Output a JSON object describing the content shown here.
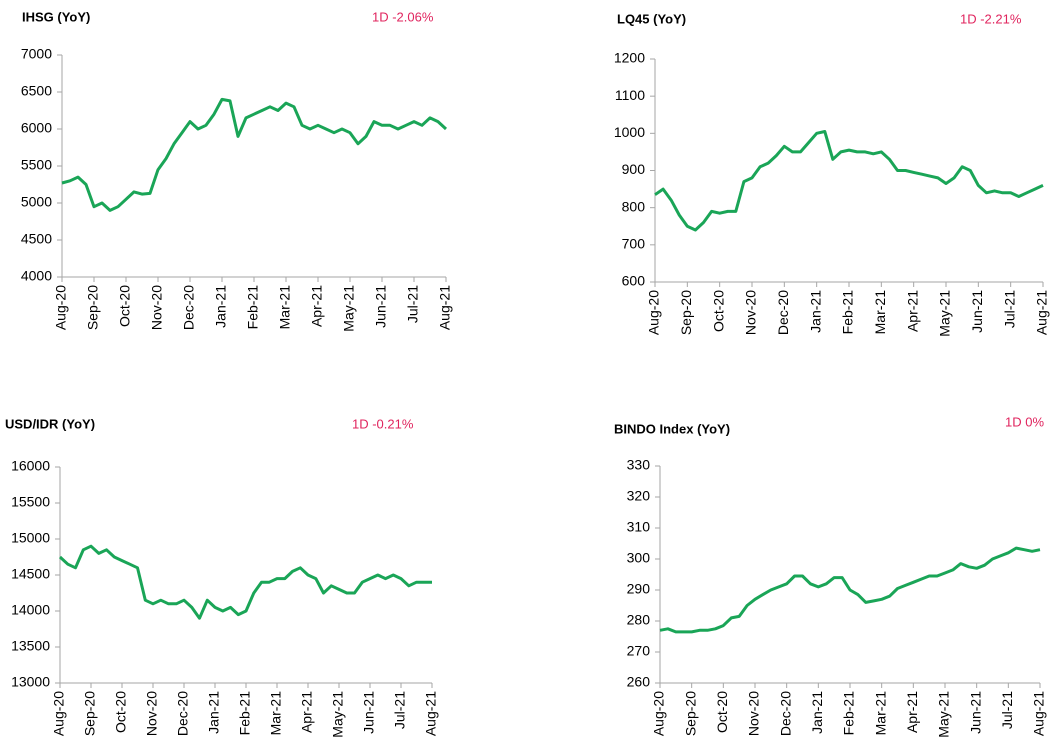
{
  "chart_data": [
    {
      "type": "line",
      "title": "IHSG (YoY)",
      "annotation": "1D -2.06%",
      "xticks": [
        "Aug-20",
        "Sep-20",
        "Oct-20",
        "Nov-20",
        "Dec-20",
        "Jan-21",
        "Feb-21",
        "Mar-21",
        "Apr-21",
        "May-21",
        "Jun-21",
        "Jul-21",
        "Aug-21"
      ],
      "ylim": [
        4000,
        7000
      ],
      "yticks": [
        4000,
        4500,
        5000,
        5500,
        6000,
        6500,
        7000
      ],
      "grid": false,
      "series": [
        {
          "name": "IHSG",
          "color": "#1aa557",
          "values": [
            5270,
            5300,
            5350,
            5250,
            4950,
            5000,
            4900,
            4950,
            5050,
            5150,
            5120,
            5130,
            5450,
            5600,
            5800,
            5950,
            6100,
            6000,
            6050,
            6200,
            6400,
            6380,
            5900,
            6150,
            6200,
            6250,
            6300,
            6250,
            6350,
            6300,
            6050,
            6000,
            6050,
            6000,
            5950,
            6000,
            5950,
            5800,
            5900,
            6100,
            6050,
            6050,
            6000,
            6050,
            6100,
            6050,
            6150,
            6100,
            6000
          ]
        }
      ]
    },
    {
      "type": "line",
      "title": "LQ45 (YoY)",
      "annotation": "1D -2.21%",
      "xticks": [
        "Aug-20",
        "Sep-20",
        "Oct-20",
        "Nov-20",
        "Dec-20",
        "Jan-21",
        "Feb-21",
        "Mar-21",
        "Apr-21",
        "May-21",
        "Jun-21",
        "Jul-21",
        "Aug-21"
      ],
      "ylim": [
        600,
        1200
      ],
      "yticks": [
        600,
        700,
        800,
        900,
        1000,
        1100,
        1200
      ],
      "grid": false,
      "series": [
        {
          "name": "LQ45",
          "color": "#1aa557",
          "values": [
            835,
            850,
            820,
            780,
            750,
            740,
            760,
            790,
            785,
            790,
            790,
            870,
            880,
            910,
            920,
            940,
            965,
            950,
            950,
            975,
            1000,
            1005,
            930,
            950,
            955,
            950,
            950,
            945,
            950,
            930,
            900,
            900,
            895,
            890,
            885,
            880,
            865,
            880,
            910,
            900,
            860,
            840,
            845,
            840,
            840,
            830,
            840,
            850,
            860
          ]
        }
      ]
    },
    {
      "type": "line",
      "title": "USD/IDR  (YoY)",
      "annotation": "1D -0.21%",
      "xticks": [
        "Aug-20",
        "Sep-20",
        "Oct-20",
        "Nov-20",
        "Dec-20",
        "Jan-21",
        "Feb-21",
        "Mar-21",
        "Apr-21",
        "May-21",
        "Jun-21",
        "Jul-21",
        "Aug-21"
      ],
      "ylim": [
        13000,
        16000
      ],
      "yticks": [
        13000,
        13500,
        14000,
        14500,
        15000,
        15500,
        16000
      ],
      "grid": false,
      "series": [
        {
          "name": "USD/IDR",
          "color": "#1aa557",
          "values": [
            14750,
            14650,
            14600,
            14850,
            14900,
            14800,
            14850,
            14750,
            14700,
            14650,
            14600,
            14150,
            14100,
            14150,
            14100,
            14100,
            14150,
            14050,
            13900,
            14150,
            14050,
            14000,
            14050,
            13950,
            14000,
            14250,
            14400,
            14400,
            14450,
            14450,
            14550,
            14600,
            14500,
            14450,
            14250,
            14350,
            14300,
            14250,
            14250,
            14400,
            14450,
            14500,
            14450,
            14500,
            14450,
            14350,
            14400,
            14400,
            14400
          ]
        }
      ]
    },
    {
      "type": "line",
      "title": "BINDO Index (YoY)",
      "annotation": "1D 0%",
      "xticks": [
        "Aug-20",
        "Sep-20",
        "Oct-20",
        "Nov-20",
        "Dec-20",
        "Jan-21",
        "Feb-21",
        "Mar-21",
        "Apr-21",
        "May-21",
        "Jun-21",
        "Jul-21",
        "Aug-21"
      ],
      "ylim": [
        260,
        330
      ],
      "yticks": [
        260,
        270,
        280,
        290,
        300,
        310,
        320,
        330
      ],
      "grid": false,
      "series": [
        {
          "name": "BINDO Index",
          "color": "#1aa557",
          "values": [
            277,
            277.5,
            276.5,
            276.5,
            276.5,
            277,
            277,
            277.5,
            278.5,
            281,
            281.5,
            285,
            287,
            288.5,
            290,
            291,
            292,
            294.5,
            294.5,
            292,
            291,
            292,
            294,
            294,
            290,
            288.5,
            286,
            286.5,
            287,
            288,
            290.5,
            291.5,
            292.5,
            293.5,
            294.5,
            294.5,
            295.5,
            296.5,
            298.5,
            297.5,
            297,
            298,
            300,
            301,
            302,
            303.5,
            303,
            302.5,
            303
          ]
        }
      ]
    }
  ]
}
